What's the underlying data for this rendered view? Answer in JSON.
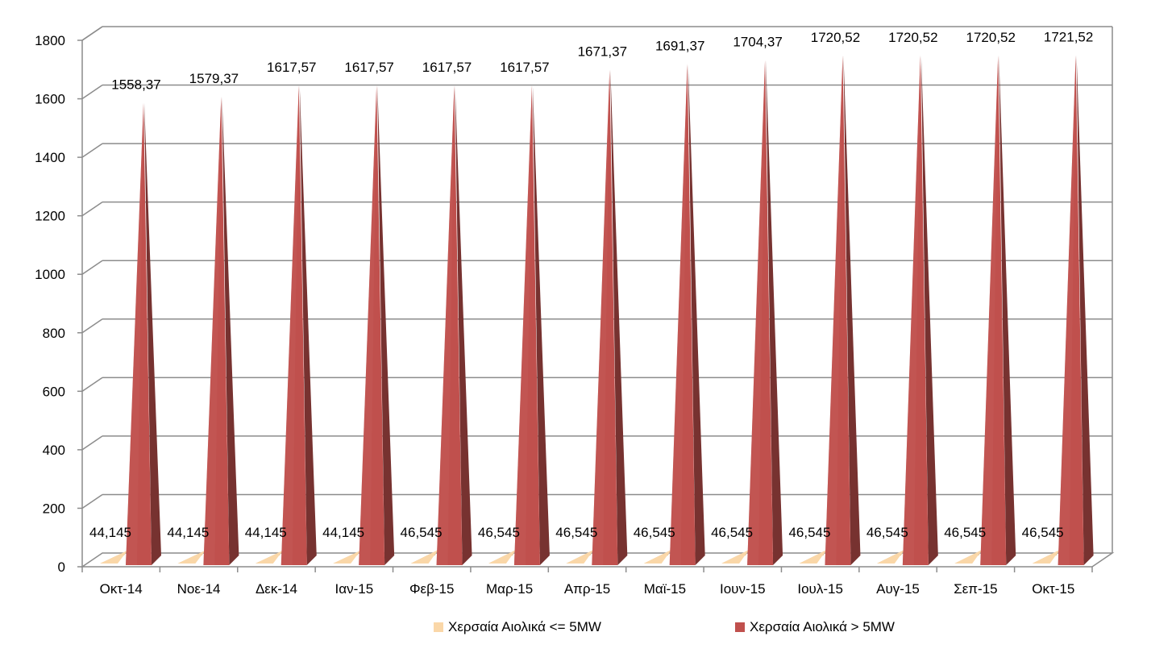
{
  "chart_data": {
    "type": "bar",
    "variant": "3d-pyramid",
    "categories": [
      "Οκτ-14",
      "Νοε-14",
      "Δεκ-14",
      "Ιαν-15",
      "Φεβ-15",
      "Μαρ-15",
      "Απρ-15",
      "Μαϊ-15",
      "Ιουν-15",
      "Ιουλ-15",
      "Αυγ-15",
      "Σεπ-15",
      "Οκτ-15"
    ],
    "series": [
      {
        "name": "Χερσαία Αιολικά <= 5MW",
        "color": "#FAD7A8",
        "values": [
          44.145,
          44.145,
          44.145,
          44.145,
          46.545,
          46.545,
          46.545,
          46.545,
          46.545,
          46.545,
          46.545,
          46.545,
          46.545
        ],
        "labels": [
          "44,145",
          "44,145",
          "44,145",
          "44,145",
          "46,545",
          "46,545",
          "46,545",
          "46,545",
          "46,545",
          "46,545",
          "46,545",
          "46,545",
          "46,545"
        ]
      },
      {
        "name": "Χερσαία Αιολικά > 5MW",
        "color": "#C0504D",
        "values": [
          1558.37,
          1579.37,
          1617.57,
          1617.57,
          1617.57,
          1617.57,
          1671.37,
          1691.37,
          1704.37,
          1720.52,
          1720.52,
          1720.52,
          1721.52
        ],
        "labels": [
          "1558,37",
          "1579,37",
          "1617,57",
          "1617,57",
          "1617,57",
          "1617,57",
          "1671,37",
          "1691,37",
          "1704,37",
          "1720,52",
          "1720,52",
          "1720,52",
          "1721,52"
        ]
      }
    ],
    "ylim": [
      0,
      1800
    ],
    "yticks": [
      0,
      200,
      400,
      600,
      800,
      1000,
      1200,
      1400,
      1600,
      1800
    ],
    "grid": true,
    "legend": "bottom",
    "title": "",
    "xlabel": "",
    "ylabel": ""
  }
}
